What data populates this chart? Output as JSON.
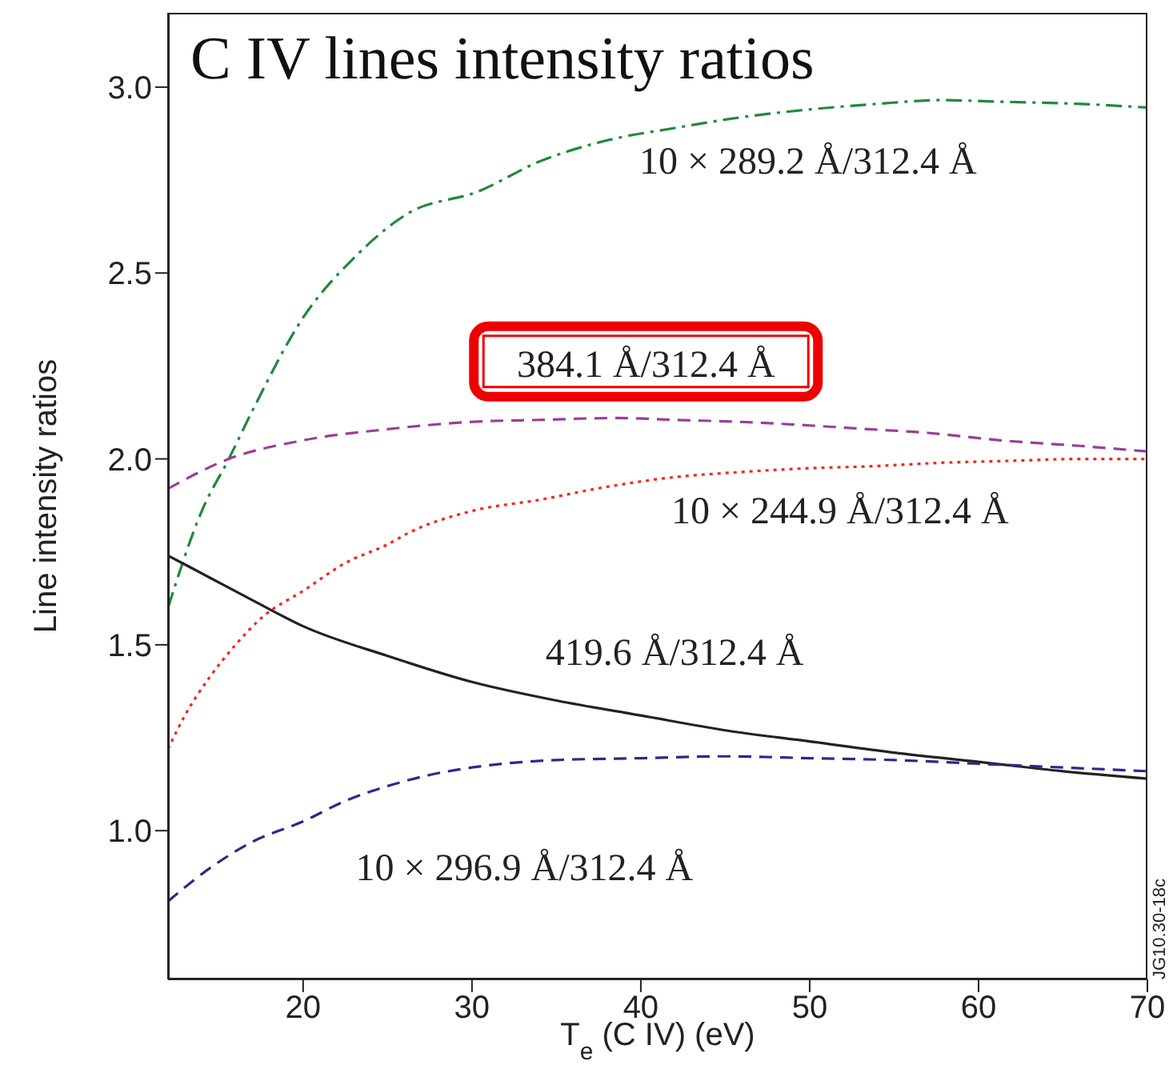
{
  "chart_data": {
    "type": "line",
    "title": "C IV lines intensity ratios",
    "xlabel": "T$_{e}$ (C IV) (eV)",
    "ylabel": "Line intensity ratios",
    "xlim": [
      12,
      70
    ],
    "xticks": [
      20,
      30,
      40,
      50,
      60,
      70
    ],
    "ylim": [
      0.6,
      3.2
    ],
    "yticks": [
      {
        "value": 1,
        "label": "1.0"
      },
      {
        "value": 1.5,
        "label": "1.5"
      },
      {
        "value": 2,
        "label": "2.0"
      },
      {
        "value": 2.5,
        "label": "2.5"
      },
      {
        "value": 3,
        "label": "3.0"
      }
    ],
    "grid": false,
    "legend": false,
    "marker": "none",
    "series": [
      {
        "name": "10 × 289.2 Å/312.4 Å",
        "color": "#1f8a3a",
        "line_style": "dashdot",
        "x": [
          12,
          14,
          15.6,
          17,
          20,
          23,
          26.2,
          30.4,
          34,
          38.3,
          42,
          46.1,
          50,
          54,
          57.7,
          62,
          66,
          70
        ],
        "values": [
          1.6,
          1.86,
          2.0,
          2.13,
          2.38,
          2.54,
          2.66,
          2.72,
          2.8,
          2.86,
          2.89,
          2.92,
          2.94,
          2.955,
          2.965,
          2.96,
          2.955,
          2.945
        ]
      },
      {
        "name": "384.1 Å/312.4 Å",
        "color": "#9b3d9b",
        "line_style": "dashed",
        "x": [
          12,
          15.6,
          20,
          25,
          30.1,
          34,
          38.7,
          42,
          45.7,
          50,
          53.5,
          57,
          61.3,
          66,
          70
        ],
        "values": [
          1.92,
          2.0,
          2.05,
          2.08,
          2.1,
          2.105,
          2.11,
          2.105,
          2.1,
          2.09,
          2.08,
          2.07,
          2.05,
          2.035,
          2.02
        ]
      },
      {
        "name": "10 × 244.9 Å/312.4 Å",
        "color": "#ff2020",
        "line_style": "dotted",
        "x": [
          12,
          13,
          14.5,
          16,
          17.6,
          20,
          22.5,
          25,
          26.2,
          30,
          34,
          38,
          41.8,
          46,
          50,
          53.5,
          58,
          62,
          66,
          70
        ],
        "values": [
          1.22,
          1.31,
          1.415,
          1.5,
          1.575,
          1.645,
          1.72,
          1.77,
          1.8,
          1.86,
          1.89,
          1.925,
          1.95,
          1.965,
          1.975,
          1.98,
          1.99,
          1.995,
          2.0,
          2.0
        ]
      },
      {
        "name": "419.6 Å/312.4 Å",
        "color": "#222222",
        "line_style": "solid",
        "x": [
          12,
          14.5,
          17,
          20,
          25,
          30,
          35,
          40,
          45,
          50,
          55,
          60,
          65,
          70
        ],
        "values": [
          1.74,
          1.68,
          1.62,
          1.55,
          1.47,
          1.4,
          1.35,
          1.31,
          1.27,
          1.24,
          1.21,
          1.185,
          1.16,
          1.14
        ]
      },
      {
        "name": "10 × 296.9 Å/312.4 Å",
        "color": "#2a2a8c",
        "line_style": "dashed",
        "x": [
          12,
          14.5,
          17,
          20,
          22.5,
          25,
          27.5,
          30,
          35,
          40,
          45,
          50,
          55,
          60,
          65,
          70
        ],
        "values": [
          0.81,
          0.9,
          0.97,
          1.025,
          1.08,
          1.12,
          1.15,
          1.17,
          1.19,
          1.195,
          1.2,
          1.195,
          1.19,
          1.18,
          1.17,
          1.16
        ]
      }
    ],
    "annotations": [
      "JG10.30-18c"
    ]
  }
}
